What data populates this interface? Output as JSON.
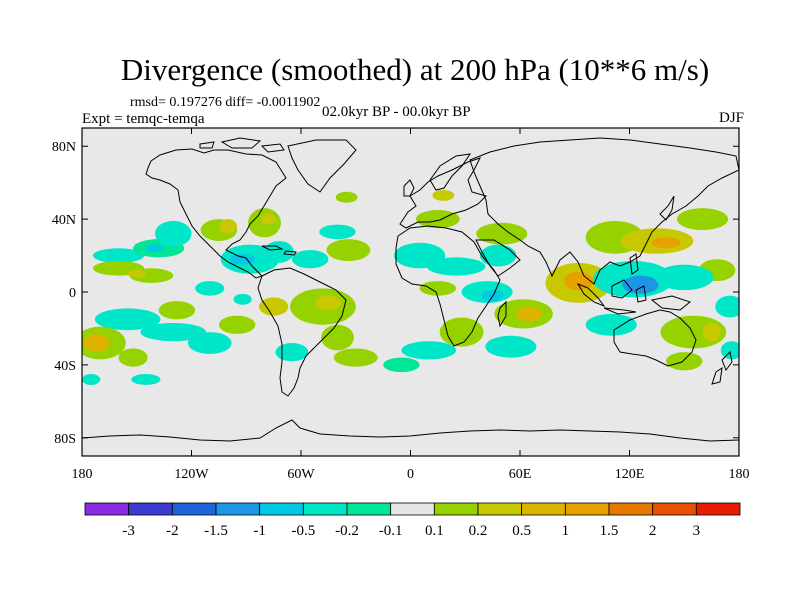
{
  "header": {
    "title": "Divergence (smoothed) at 200 hPa (10**6 m/s)",
    "stats": "rmsd= 0.197276 diff= -0.0011902",
    "experiment": "Expt = temqc-temqa",
    "period": "02.0kyr BP - 00.0kyr BP",
    "season": "DJF"
  },
  "chart_data": {
    "type": "heatmap",
    "title": "Divergence (smoothed) at 200 hPa (10**6 m/s)",
    "projection": "cylindrical equidistant",
    "xlim": [
      -180,
      180
    ],
    "ylim": [
      -90,
      90
    ],
    "x_ticks": [
      {
        "value": -180,
        "label": "180"
      },
      {
        "value": -120,
        "label": "120W"
      },
      {
        "value": -60,
        "label": "60W"
      },
      {
        "value": 0,
        "label": "0"
      },
      {
        "value": 60,
        "label": "60E"
      },
      {
        "value": 120,
        "label": "120E"
      },
      {
        "value": 180,
        "label": "180"
      }
    ],
    "y_ticks": [
      {
        "value": 80,
        "label": "80N"
      },
      {
        "value": 40,
        "label": "40N"
      },
      {
        "value": 0,
        "label": "0"
      },
      {
        "value": -40,
        "label": "40S"
      },
      {
        "value": -80,
        "label": "80S"
      }
    ],
    "colorbar": {
      "colors": [
        "#8a2be2",
        "#3c3cd2",
        "#1e64dc",
        "#1e96e6",
        "#00c8e6",
        "#00e6c8",
        "#00e696",
        "#e6e6e6",
        "#96d200",
        "#c8c800",
        "#dcb400",
        "#e6a000",
        "#e67800",
        "#e65000",
        "#e61e00"
      ],
      "boundaries": [
        "-3",
        "-2",
        "-1.5",
        "-1",
        "-0.5",
        "-0.2",
        "-0.1",
        "0.1",
        "0.2",
        "0.5",
        "1",
        "1.5",
        "2",
        "3"
      ]
    },
    "regions": [
      {
        "lon": -160,
        "lat": 20,
        "rx": 14,
        "ry": 4,
        "level": 5
      },
      {
        "lon": -138,
        "lat": 24,
        "rx": 14,
        "ry": 5,
        "level": 6
      },
      {
        "lon": -140,
        "lat": 24,
        "rx": 5,
        "ry": 2,
        "level": 4
      },
      {
        "lon": -160,
        "lat": 13,
        "rx": 14,
        "ry": 4,
        "level": 8
      },
      {
        "lon": -142,
        "lat": 9,
        "rx": 12,
        "ry": 4,
        "level": 8
      },
      {
        "lon": -150,
        "lat": 10,
        "rx": 5,
        "ry": 2,
        "level": 9
      },
      {
        "lon": -130,
        "lat": 32,
        "rx": 10,
        "ry": 7,
        "level": 5
      },
      {
        "lon": -105,
        "lat": 34,
        "rx": 10,
        "ry": 6,
        "level": 8
      },
      {
        "lon": -100,
        "lat": 36,
        "rx": 5,
        "ry": 4,
        "level": 9
      },
      {
        "lon": -80,
        "lat": 38,
        "rx": 9,
        "ry": 8,
        "level": 8
      },
      {
        "lon": -78,
        "lat": 40,
        "rx": 4,
        "ry": 3,
        "level": 9
      },
      {
        "lon": -88,
        "lat": 18,
        "rx": 16,
        "ry": 8,
        "level": 5
      },
      {
        "lon": -92,
        "lat": 18,
        "rx": 7,
        "ry": 3,
        "level": 4
      },
      {
        "lon": -72,
        "lat": 22,
        "rx": 8,
        "ry": 6,
        "level": 5
      },
      {
        "lon": -55,
        "lat": 18,
        "rx": 10,
        "ry": 5,
        "level": 5
      },
      {
        "lon": -34,
        "lat": 23,
        "rx": 12,
        "ry": 6,
        "level": 8
      },
      {
        "lon": -40,
        "lat": 33,
        "rx": 10,
        "ry": 4,
        "level": 5
      },
      {
        "lon": -35,
        "lat": 52,
        "rx": 6,
        "ry": 3,
        "level": 8
      },
      {
        "lon": -110,
        "lat": 2,
        "rx": 8,
        "ry": 4,
        "level": 5
      },
      {
        "lon": -92,
        "lat": -4,
        "rx": 5,
        "ry": 3,
        "level": 5
      },
      {
        "lon": -75,
        "lat": -8,
        "rx": 8,
        "ry": 5,
        "level": 9
      },
      {
        "lon": -48,
        "lat": -8,
        "rx": 18,
        "ry": 10,
        "level": 8
      },
      {
        "lon": -45,
        "lat": -6,
        "rx": 7,
        "ry": 4,
        "level": 9
      },
      {
        "lon": -40,
        "lat": -25,
        "rx": 9,
        "ry": 7,
        "level": 8
      },
      {
        "lon": -155,
        "lat": -15,
        "rx": 18,
        "ry": 6,
        "level": 5
      },
      {
        "lon": -128,
        "lat": -10,
        "rx": 10,
        "ry": 5,
        "level": 8
      },
      {
        "lon": -130,
        "lat": -22,
        "rx": 18,
        "ry": 5,
        "level": 5
      },
      {
        "lon": -170,
        "lat": -28,
        "rx": 14,
        "ry": 9,
        "level": 8
      },
      {
        "lon": -172,
        "lat": -28,
        "rx": 7,
        "ry": 5,
        "level": 10
      },
      {
        "lon": -152,
        "lat": -36,
        "rx": 8,
        "ry": 5,
        "level": 8
      },
      {
        "lon": -110,
        "lat": -28,
        "rx": 12,
        "ry": 6,
        "level": 5
      },
      {
        "lon": -95,
        "lat": -18,
        "rx": 10,
        "ry": 5,
        "level": 8
      },
      {
        "lon": -145,
        "lat": -48,
        "rx": 8,
        "ry": 3,
        "level": 5
      },
      {
        "lon": -175,
        "lat": -48,
        "rx": 5,
        "ry": 3,
        "level": 5
      },
      {
        "lon": -65,
        "lat": -33,
        "rx": 9,
        "ry": 5,
        "level": 5
      },
      {
        "lon": -30,
        "lat": -36,
        "rx": 12,
        "ry": 5,
        "level": 8
      },
      {
        "lon": -5,
        "lat": -40,
        "rx": 10,
        "ry": 4,
        "level": 6
      },
      {
        "lon": 5,
        "lat": 20,
        "rx": 14,
        "ry": 7,
        "level": 5
      },
      {
        "lon": 25,
        "lat": 14,
        "rx": 16,
        "ry": 5,
        "level": 5
      },
      {
        "lon": 48,
        "lat": 20,
        "rx": 10,
        "ry": 6,
        "level": 5
      },
      {
        "lon": 15,
        "lat": 40,
        "rx": 12,
        "ry": 5,
        "level": 8
      },
      {
        "lon": 50,
        "lat": 32,
        "rx": 14,
        "ry": 6,
        "level": 8
      },
      {
        "lon": 18,
        "lat": 53,
        "rx": 6,
        "ry": 3,
        "level": 9
      },
      {
        "lon": 15,
        "lat": 2,
        "rx": 10,
        "ry": 4,
        "level": 8
      },
      {
        "lon": 42,
        "lat": 0,
        "rx": 14,
        "ry": 6,
        "level": 5
      },
      {
        "lon": 45,
        "lat": -2,
        "rx": 6,
        "ry": 3,
        "level": 4
      },
      {
        "lon": 62,
        "lat": -12,
        "rx": 16,
        "ry": 8,
        "level": 8
      },
      {
        "lon": 65,
        "lat": -12,
        "rx": 7,
        "ry": 4,
        "level": 10
      },
      {
        "lon": 28,
        "lat": -22,
        "rx": 12,
        "ry": 8,
        "level": 8
      },
      {
        "lon": 55,
        "lat": -30,
        "rx": 14,
        "ry": 6,
        "level": 5
      },
      {
        "lon": 10,
        "lat": -32,
        "rx": 15,
        "ry": 5,
        "level": 5
      },
      {
        "lon": 92,
        "lat": 5,
        "rx": 18,
        "ry": 11,
        "level": 9
      },
      {
        "lon": 92,
        "lat": 6,
        "rx": 8,
        "ry": 5,
        "level": 11
      },
      {
        "lon": 112,
        "lat": 30,
        "rx": 16,
        "ry": 9,
        "level": 8
      },
      {
        "lon": 135,
        "lat": 28,
        "rx": 20,
        "ry": 7,
        "level": 9
      },
      {
        "lon": 140,
        "lat": 27,
        "rx": 8,
        "ry": 3,
        "level": 11
      },
      {
        "lon": 160,
        "lat": 40,
        "rx": 14,
        "ry": 6,
        "level": 8
      },
      {
        "lon": 168,
        "lat": 12,
        "rx": 10,
        "ry": 6,
        "level": 8
      },
      {
        "lon": 122,
        "lat": 7,
        "rx": 22,
        "ry": 10,
        "level": 5
      },
      {
        "lon": 126,
        "lat": 4,
        "rx": 10,
        "ry": 5,
        "level": 3
      },
      {
        "lon": 150,
        "lat": 8,
        "rx": 16,
        "ry": 7,
        "level": 5
      },
      {
        "lon": 110,
        "lat": -18,
        "rx": 14,
        "ry": 6,
        "level": 5
      },
      {
        "lon": 155,
        "lat": -22,
        "rx": 18,
        "ry": 9,
        "level": 8
      },
      {
        "lon": 165,
        "lat": -22,
        "rx": 5,
        "ry": 5,
        "level": 9
      },
      {
        "lon": 175,
        "lat": -8,
        "rx": 8,
        "ry": 6,
        "level": 5
      },
      {
        "lon": 150,
        "lat": -38,
        "rx": 10,
        "ry": 5,
        "level": 8
      },
      {
        "lon": 176,
        "lat": -32,
        "rx": 6,
        "ry": 5,
        "level": 5
      }
    ]
  }
}
